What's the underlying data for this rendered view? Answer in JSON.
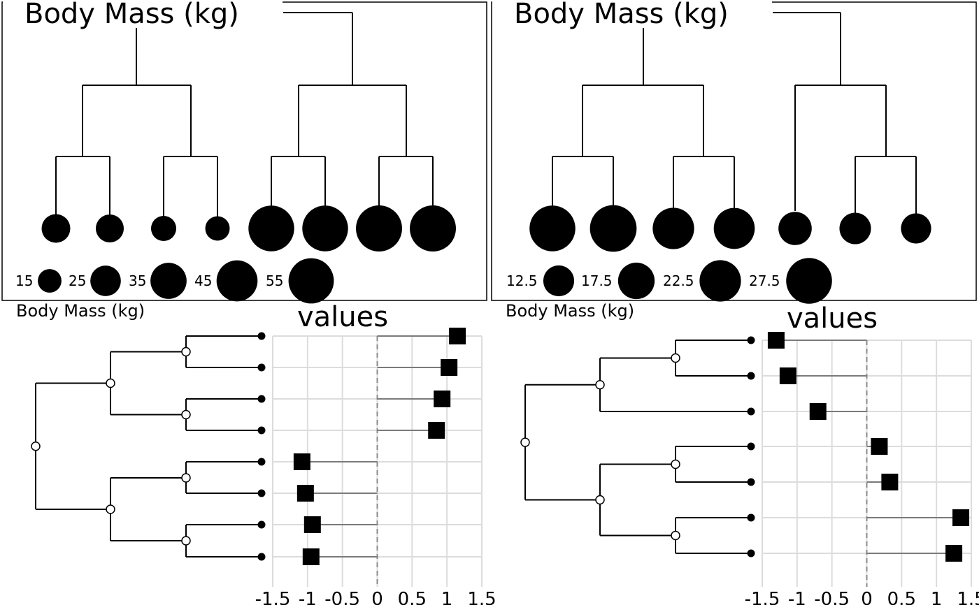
{
  "panels": [
    {
      "title": "Body Mass (kg)"
    },
    {
      "title": "Body Mass (kg)"
    },
    {
      "title": "Body Mass (kg)",
      "values_title": "values"
    },
    {
      "title": "Body Mass (kg)",
      "values_title": "values"
    }
  ],
  "chart_data": [
    {
      "type": "dendrogram-bubble",
      "title": "Body Mass (kg)",
      "leaf_values": [
        22,
        21,
        17,
        16,
        56,
        56,
        57,
        57
      ],
      "legend": {
        "labels": [
          "15",
          "25",
          "35",
          "45",
          "55"
        ],
        "values": [
          15,
          25,
          35,
          45,
          55
        ]
      }
    },
    {
      "type": "dendrogram-bubble",
      "title": "Body Mass (kg)",
      "leaf_values": [
        27.5,
        28.5,
        22.5,
        22.0,
        14.5,
        13.0,
        12.0
      ],
      "legend": {
        "labels": [
          "12.5",
          "17.5",
          "22.5",
          "27.5"
        ],
        "values": [
          12.5,
          17.5,
          22.5,
          27.5
        ]
      }
    },
    {
      "type": "phylogeny-lollipop",
      "title": "Body Mass (kg)",
      "xlabel": "values",
      "x_ticks": [
        "-1.5",
        "-1",
        "-0.5",
        "0",
        "0.5",
        "1",
        "1.5"
      ],
      "xlim": [
        -1.5,
        1.5
      ],
      "values": [
        1.15,
        1.03,
        0.93,
        0.85,
        -1.08,
        -1.03,
        -0.93,
        -0.95
      ]
    },
    {
      "type": "phylogeny-lollipop",
      "title": "Body Mass (kg)",
      "xlabel": "values",
      "x_ticks": [
        "-1.5",
        "-1",
        "-0.5",
        "0",
        "0.5",
        "1",
        "1.5"
      ],
      "xlim": [
        -1.5,
        1.5
      ],
      "values": [
        -1.3,
        -1.13,
        -0.7,
        0.18,
        0.33,
        1.35,
        1.25
      ]
    }
  ]
}
